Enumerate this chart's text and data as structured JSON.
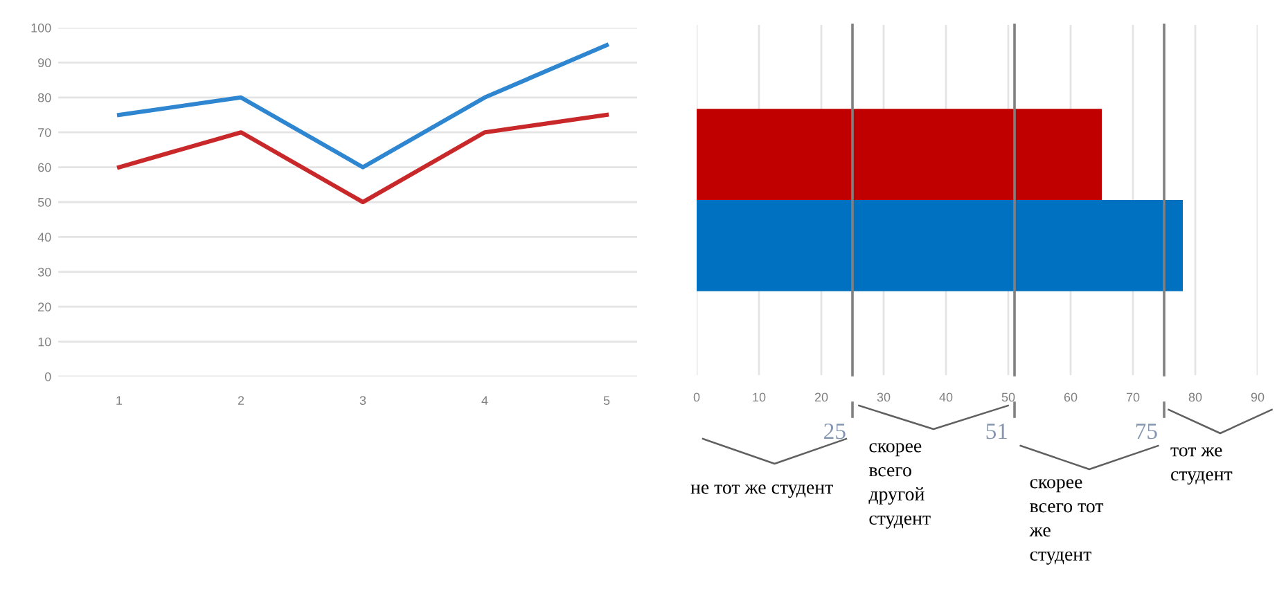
{
  "chart_data": [
    {
      "type": "line",
      "categories": [
        "1",
        "2",
        "3",
        "4",
        "5"
      ],
      "series": [
        {
          "color": "#2e86d0",
          "values": [
            75,
            80,
            60,
            80,
            95
          ]
        },
        {
          "color": "#c8282a",
          "values": [
            60,
            70,
            50,
            70,
            75
          ]
        }
      ],
      "ylim": [
        0,
        100
      ],
      "yticks": [
        0,
        10,
        20,
        30,
        40,
        50,
        60,
        70,
        80,
        90,
        100
      ],
      "grid": "y",
      "legend": false,
      "marker": "none",
      "line_style": "solid"
    },
    {
      "type": "bar",
      "orientation": "horizontal",
      "categories": [
        null,
        null
      ],
      "values": [
        65,
        78
      ],
      "colors": [
        "#c00000",
        "#0070c0"
      ],
      "xlim": [
        0,
        90
      ],
      "xticks": [
        0,
        10,
        20,
        30,
        40,
        50,
        60,
        70,
        80,
        90
      ],
      "grid": "x",
      "legend": false,
      "ref_lines": [
        {
          "axis": "x",
          "value": 25,
          "label": "25",
          "color": "#808080"
        },
        {
          "axis": "x",
          "value": 51,
          "label": "51",
          "color": "#808080"
        },
        {
          "axis": "x",
          "value": 75,
          "label": "75",
          "color": "#808080"
        }
      ],
      "annotations": [
        "не тот же студент",
        "скорее\nвсего\nдругой\nстудент",
        "скорее\nвсего тот\nже\nстудент",
        "тот же\nстудент"
      ]
    }
  ]
}
